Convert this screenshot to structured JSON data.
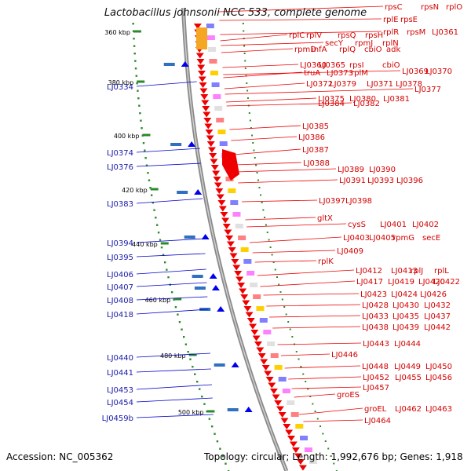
{
  "title": "Lactobacillus johnsonii NCC 533, complete genome",
  "footer": {
    "accession": "Accession: NC_005362",
    "topology": "Topology: circular; Length: 1,992,676 bp; Genes: 1,918"
  },
  "colors": {
    "gene_label": "#d40000",
    "left_label": "#1a1aa8",
    "backbone": "#8a8a8a",
    "tick": "#2a8a2a"
  },
  "kbp_marks": [
    "360 kbp",
    "380 kbp",
    "400 kbp",
    "420 kbp",
    "440 kbp",
    "460 kbp",
    "480 kbp",
    "500 kbp"
  ],
  "left_labels": [
    "LJ0334",
    "LJ0374",
    "LJ0376",
    "LJ0383",
    "LJ0394",
    "LJ0395",
    "LJ0406",
    "LJ0407",
    "LJ0408",
    "LJ0418",
    "LJ0440",
    "LJ0441",
    "LJ0453",
    "LJ0454",
    "LJ0459b"
  ],
  "right_labels": [
    "rpsC",
    "rpsN",
    "rplO",
    "rplE",
    "rpsE",
    "rplR",
    "rpsM",
    "LJ0361",
    "rplC",
    "rplV",
    "rpsQ",
    "rpsH",
    "secY",
    "rpmJ",
    "rplN",
    "rpmD",
    "infA",
    "rplQ",
    "cbiO",
    "adk",
    "LJ0360",
    "LJ0365",
    "rpsI",
    "cbiO",
    "truA",
    "LJ0373",
    "rplM",
    "LJ0369",
    "LJ0370",
    "LJ0372",
    "LJ0379",
    "LJ0371",
    "LJ0378",
    "LJ0377",
    "LJ0375",
    "LJ0380",
    "LJ0381",
    "LJ0382",
    "LJ0384",
    "LJ0385",
    "LJ0386",
    "LJ0387",
    "LJ0388",
    "LJ0389",
    "LJ0390",
    "LJ0391",
    "LJ0393",
    "LJ0396",
    "LJ0397",
    "LJ0398",
    "gltX",
    "cysS",
    "LJ0401",
    "LJ0402",
    "LJ0403",
    "LJ0405",
    "rpmG",
    "secE",
    "LJ0409",
    "rplK",
    "LJ0412",
    "LJ0413",
    "rplJ",
    "rplL",
    "LJ0417",
    "LJ0419",
    "LJ0420",
    "LJ0422",
    "LJ0423",
    "LJ0424",
    "LJ0426",
    "LJ0428",
    "LJ0430",
    "LJ0432",
    "LJ0433",
    "LJ0435",
    "LJ0437",
    "LJ0438",
    "LJ0439",
    "LJ0442",
    "LJ0443",
    "LJ0444",
    "LJ0446",
    "LJ0448",
    "LJ0449",
    "LJ0450",
    "LJ0452",
    "LJ0455",
    "LJ0456",
    "LJ0457",
    "groES",
    "groEL",
    "LJ0462",
    "LJ0463",
    "LJ0464"
  ]
}
